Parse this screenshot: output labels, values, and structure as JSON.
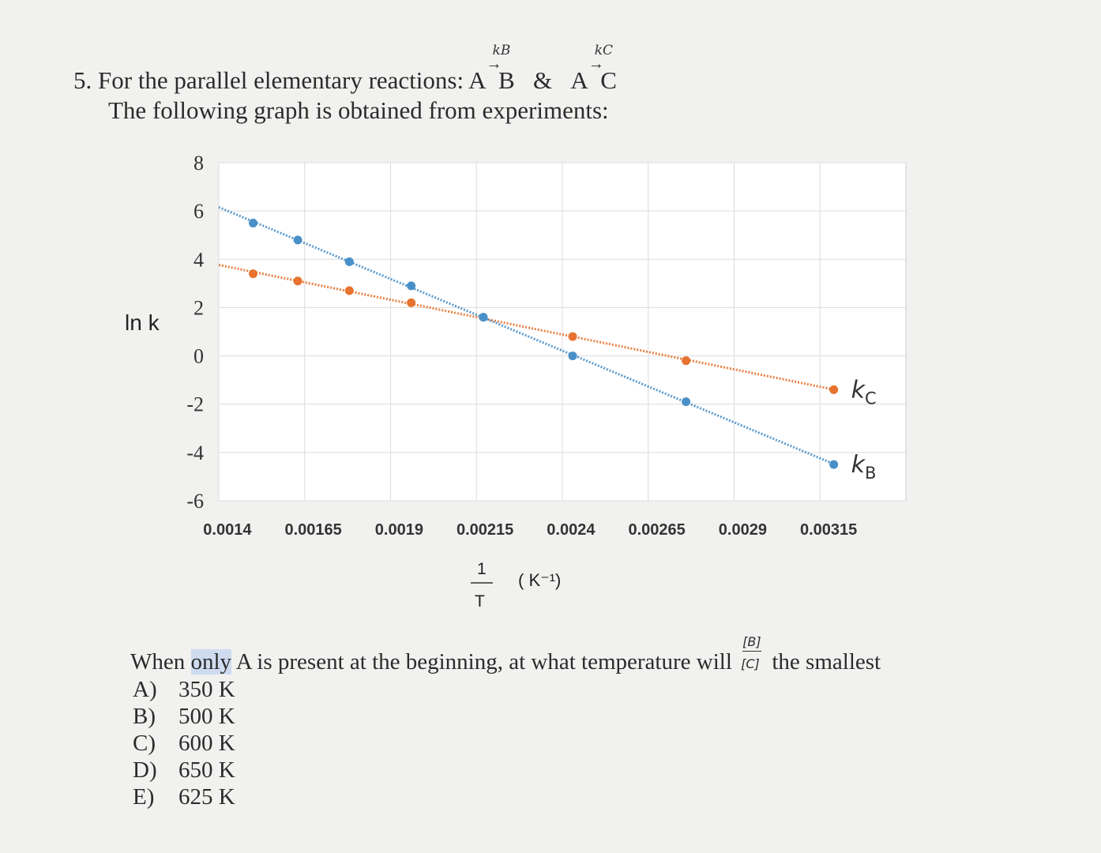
{
  "question": {
    "line1_prefix": "5. For the parallel elementary reactions: ",
    "reaction1_reactant": "A",
    "reaction1_rate": "kB",
    "reaction1_product": "B",
    "ampersand": "&",
    "reaction2_reactant": "A",
    "reaction2_rate": "kC",
    "reaction2_product": "C",
    "line2": "The following graph is obtained from experiments:",
    "text_before_highlight": "When ",
    "highlight_word": "only",
    "text_after_highlight": " A is present at the beginning, at what temperature will ",
    "ratio_numerator": "[B]",
    "ratio_denominator": "[C]",
    "text_end": " the smallest"
  },
  "options": [
    {
      "letter": "A)",
      "value": "350 K"
    },
    {
      "letter": "B)",
      "value": "500 K"
    },
    {
      "letter": "C)",
      "value": "600 K"
    },
    {
      "letter": "D)",
      "value": "650 K"
    },
    {
      "letter": "E)",
      "value": "625 K"
    }
  ],
  "chart_data": {
    "type": "line",
    "ylabel": "ln k",
    "xlabel_numerator": "1",
    "xlabel_denominator": "T",
    "xlabel_unit": "( K⁻¹)",
    "x_tick_labels": [
      "0.0014",
      "0.00165",
      "0.0019",
      "0.00215",
      "0.0024",
      "0.00265",
      "0.0029",
      "0.00315"
    ],
    "y_tick_labels": [
      "8",
      "6",
      "4",
      "2",
      "0",
      "-2",
      "-4",
      "-6"
    ],
    "xlim": [
      0.0014,
      0.0034
    ],
    "ylim": [
      -6,
      8
    ],
    "grid": true,
    "series": [
      {
        "name": "kC",
        "color": "#e6732f",
        "x": [
          0.0015,
          0.00163,
          0.00178,
          0.00196,
          0.00217,
          0.00243,
          0.00276,
          0.00319
        ],
        "y": [
          3.4,
          3.1,
          2.7,
          2.2,
          1.6,
          0.8,
          -0.2,
          -1.4
        ]
      },
      {
        "name": "kB",
        "color": "#4a90c8",
        "x": [
          0.0015,
          0.00163,
          0.00178,
          0.00196,
          0.00217,
          0.00243,
          0.00276,
          0.00319
        ],
        "y": [
          5.5,
          4.8,
          3.9,
          2.9,
          1.6,
          0.0,
          -1.9,
          -4.5
        ]
      }
    ]
  }
}
